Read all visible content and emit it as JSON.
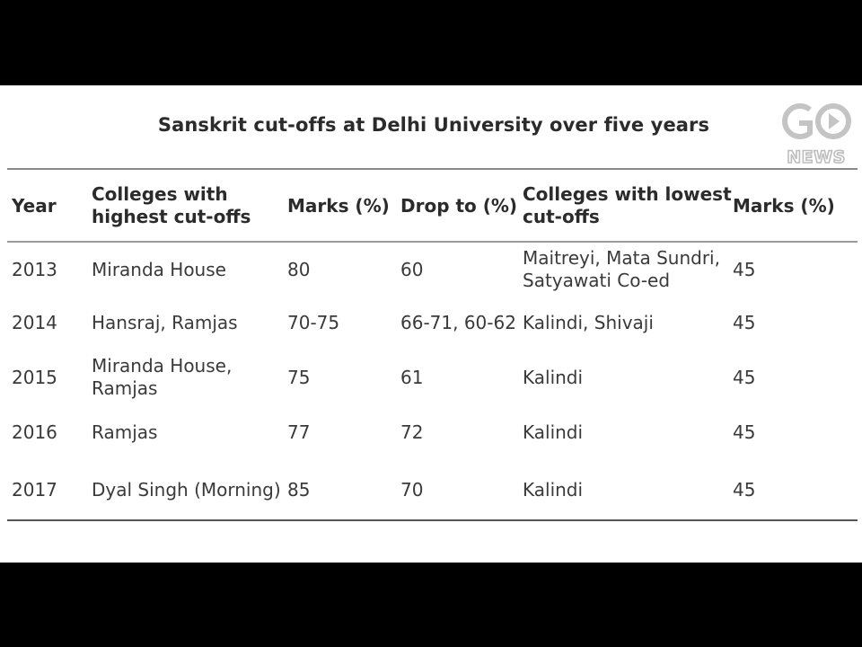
{
  "title": "Sanskrit cut-offs at Delhi University over five years",
  "logo": {
    "line1": "GO",
    "line2": "NEWS"
  },
  "columns": [
    {
      "lines": [
        "Year"
      ]
    },
    {
      "lines": [
        "Colleges with",
        "highest cut-offs"
      ]
    },
    {
      "lines": [
        "Marks (%)"
      ]
    },
    {
      "lines": [
        "Drop to (%)"
      ]
    },
    {
      "lines": [
        "Colleges with lowest",
        "cut-offs"
      ]
    },
    {
      "lines": [
        "Marks (%)"
      ]
    }
  ],
  "rows": [
    {
      "year": "2013",
      "highest": [
        "Miranda House"
      ],
      "marks": "80",
      "drop": "60",
      "lowest": [
        "Maitreyi, Mata Sundri,",
        "Satyawati Co-ed"
      ],
      "low_marks": "45"
    },
    {
      "year": "2014",
      "highest": [
        "Hansraj, Ramjas"
      ],
      "marks": "70-75",
      "drop": "66-71, 60-62",
      "lowest": [
        "Kalindi, Shivaji"
      ],
      "low_marks": "45"
    },
    {
      "year": "2015",
      "highest": [
        "Miranda House,",
        "Ramjas"
      ],
      "marks": "75",
      "drop": "61",
      "lowest": [
        "Kalindi"
      ],
      "low_marks": "45"
    },
    {
      "year": "2016",
      "highest": [
        "Ramjas"
      ],
      "marks": "77",
      "drop": "72",
      "lowest": [
        "Kalindi"
      ],
      "low_marks": "45"
    },
    {
      "year": "2017",
      "highest": [
        "Dyal Singh (Morning)"
      ],
      "marks": "85",
      "drop": "70",
      "lowest": [
        "Kalindi"
      ],
      "low_marks": "45"
    }
  ]
}
